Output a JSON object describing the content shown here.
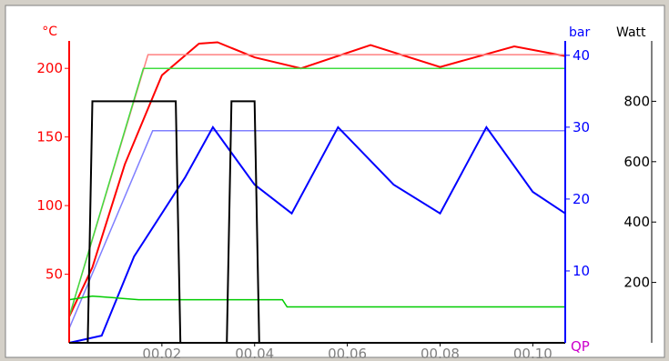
{
  "chart_data": {
    "type": "line",
    "x_tick_labels": [
      "00.02",
      "00.04",
      "00.06",
      "00.08",
      "00.10"
    ],
    "x_range": [
      0,
      10.7
    ],
    "axes": [
      {
        "unit": "°C",
        "color": "#ff0000",
        "range": [
          0,
          220
        ],
        "tick_labels": [
          "200",
          "150",
          "100",
          "50"
        ],
        "tick_values": [
          200,
          150,
          100,
          50
        ]
      },
      {
        "unit": "bar",
        "color": "#0000ff",
        "range": [
          0,
          42
        ],
        "tick_labels": [
          "40",
          "30",
          "20",
          "10"
        ],
        "tick_values": [
          40,
          30,
          20,
          10
        ]
      },
      {
        "unit": "Watt",
        "color": "#000000",
        "range": [
          0,
          1000
        ],
        "tick_labels": [
          "800",
          "600",
          "400",
          "200"
        ],
        "tick_values": [
          800,
          600,
          400,
          200
        ]
      }
    ],
    "corner_label": "QP",
    "corner_label_color": "#cc00cc",
    "series": [
      {
        "color": "#ff0000",
        "axis": "°C",
        "points": [
          [
            0,
            19
          ],
          [
            0.5,
            55
          ],
          [
            1.2,
            130
          ],
          [
            2.0,
            195
          ],
          [
            2.8,
            218
          ],
          [
            3.2,
            219
          ],
          [
            4.0,
            208
          ],
          [
            5.0,
            200
          ],
          [
            6.5,
            217
          ],
          [
            8.0,
            201
          ],
          [
            9.6,
            216
          ],
          [
            10.7,
            209
          ]
        ]
      },
      {
        "color": "#ff8080",
        "axis": "°C",
        "points": [
          [
            0,
            19
          ],
          [
            1.7,
            210
          ],
          [
            10.7,
            210
          ]
        ]
      },
      {
        "color": "#40dd40",
        "axis": "°C",
        "points": [
          [
            0,
            19
          ],
          [
            1.6,
            200
          ],
          [
            10.7,
            200
          ]
        ]
      },
      {
        "color": "#8080ff",
        "axis": "bar",
        "points": [
          [
            0,
            2
          ],
          [
            1.8,
            29.5
          ],
          [
            10.7,
            29.5
          ]
        ]
      },
      {
        "color": "#0000ff",
        "axis": "bar",
        "points": [
          [
            0,
            0
          ],
          [
            0.7,
            1
          ],
          [
            1.4,
            12
          ],
          [
            2.5,
            23
          ],
          [
            3.1,
            30
          ],
          [
            4.0,
            22
          ],
          [
            4.8,
            18
          ],
          [
            5.8,
            30
          ],
          [
            7.0,
            22
          ],
          [
            8.0,
            18
          ],
          [
            9.0,
            30
          ],
          [
            10.0,
            21
          ],
          [
            10.7,
            18
          ]
        ]
      },
      {
        "color": "#00cc00",
        "axis": "bar",
        "points": [
          [
            0,
            6
          ],
          [
            0.5,
            6.5
          ],
          [
            1.5,
            6
          ],
          [
            4.6,
            6
          ],
          [
            4.7,
            5
          ],
          [
            10.7,
            5
          ]
        ]
      },
      {
        "color": "#000000",
        "axis": "Watt",
        "points": [
          [
            0,
            0
          ],
          [
            0.4,
            0
          ],
          [
            0.5,
            800
          ],
          [
            2.3,
            800
          ],
          [
            2.4,
            0
          ],
          [
            3.4,
            0
          ],
          [
            3.5,
            800
          ],
          [
            4.0,
            800
          ],
          [
            4.1,
            0
          ],
          [
            10.7,
            0
          ]
        ]
      }
    ]
  }
}
